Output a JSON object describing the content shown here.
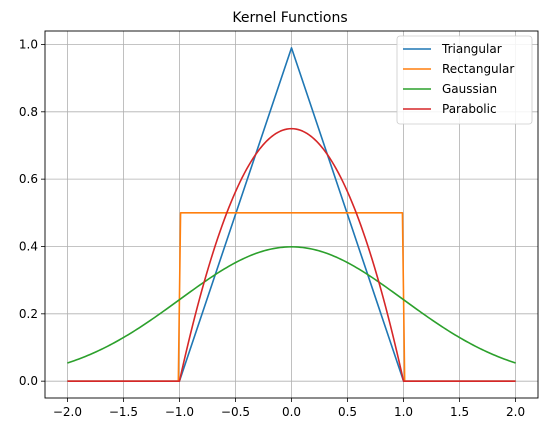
{
  "chart_data": {
    "type": "line",
    "title": "Kernel Functions",
    "xlabel": "",
    "ylabel": "",
    "xlim": [
      -2.2,
      2.2
    ],
    "ylim": [
      -0.05,
      1.04
    ],
    "xticks": [
      -2.0,
      -1.5,
      -1.0,
      -0.5,
      0.0,
      0.5,
      1.0,
      1.5,
      2.0
    ],
    "xtick_labels": [
      "−2.0",
      "−1.5",
      "−1.0",
      "−0.5",
      "0.0",
      "0.5",
      "1.0",
      "1.5",
      "2.0"
    ],
    "yticks": [
      0.0,
      0.2,
      0.4,
      0.6,
      0.8,
      1.0
    ],
    "ytick_labels": [
      "0.0",
      "0.2",
      "0.4",
      "0.6",
      "0.8",
      "1.0"
    ],
    "grid": true,
    "legend_position": "top-right",
    "series": [
      {
        "name": "Triangular",
        "color": "#1f77b4",
        "x": [
          -2.0,
          -1.0,
          0.0,
          1.0,
          2.0
        ],
        "y": [
          0.0,
          0.0,
          0.99,
          0.0,
          0.0
        ]
      },
      {
        "name": "Rectangular",
        "color": "#ff7f0e",
        "x": [
          -2.0,
          -1.01,
          -0.99,
          0.99,
          1.01,
          2.0
        ],
        "y": [
          0.0,
          0.0,
          0.5,
          0.5,
          0.0,
          0.0
        ]
      },
      {
        "name": "Gaussian",
        "color": "#2ca02c",
        "x": [
          -2.0,
          -1.5,
          -1.0,
          -0.5,
          0.0,
          0.5,
          1.0,
          1.5,
          2.0
        ],
        "y": [
          0.054,
          0.13,
          0.242,
          0.352,
          0.399,
          0.352,
          0.242,
          0.13,
          0.054
        ]
      },
      {
        "name": "Parabolic",
        "color": "#d62728",
        "x": [
          -2.0,
          -1.0,
          -0.75,
          -0.5,
          -0.25,
          0.0,
          0.25,
          0.5,
          0.75,
          1.0,
          2.0
        ],
        "y": [
          0.0,
          0.0,
          0.328,
          0.5625,
          0.703,
          0.75,
          0.703,
          0.5625,
          0.328,
          0.0,
          0.0
        ]
      }
    ]
  }
}
